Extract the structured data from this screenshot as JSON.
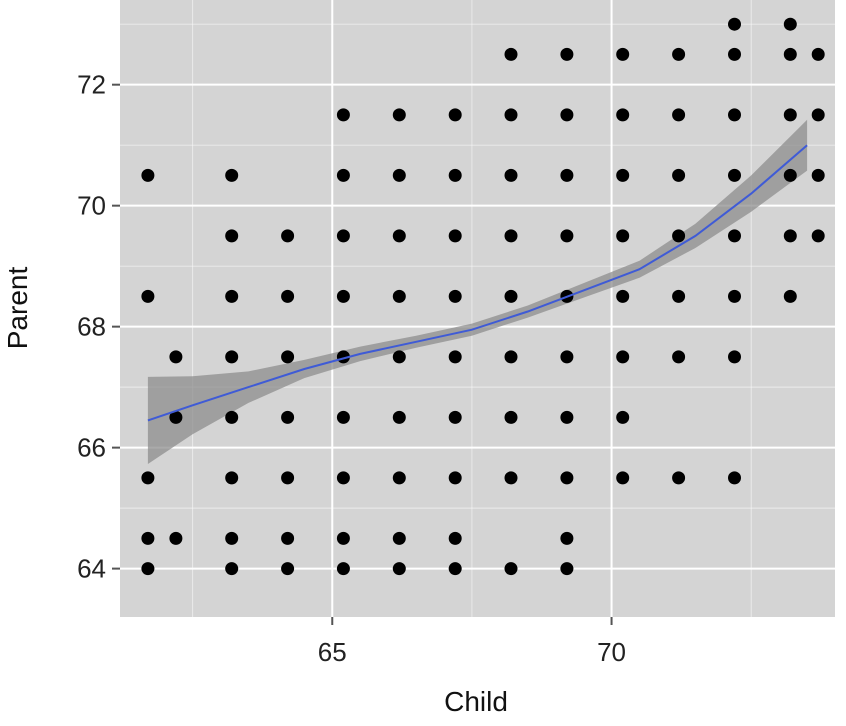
{
  "chart_data": {
    "type": "scatter",
    "xlabel": "Child",
    "ylabel": "Parent",
    "xlim": [
      61.2,
      74.0
    ],
    "ylim": [
      63.2,
      73.4
    ],
    "x_ticks": [
      65,
      70
    ],
    "y_ticks": [
      64,
      66,
      68,
      70,
      72
    ],
    "grid": true,
    "legend": "none",
    "colors": {
      "panel": "#d4d4d4",
      "grid": "#ffffff",
      "point": "#000000",
      "smooth_line": "#3f5bd6",
      "ribbon": "#8d8d8d"
    },
    "points": [
      [
        61.7,
        70.5
      ],
      [
        61.7,
        68.5
      ],
      [
        61.7,
        65.5
      ],
      [
        61.7,
        64.5
      ],
      [
        61.7,
        64.0
      ],
      [
        62.2,
        67.5
      ],
      [
        62.2,
        66.5
      ],
      [
        62.2,
        64.5
      ],
      [
        63.2,
        70.5
      ],
      [
        63.2,
        69.5
      ],
      [
        63.2,
        68.5
      ],
      [
        63.2,
        67.5
      ],
      [
        63.2,
        66.5
      ],
      [
        63.2,
        65.5
      ],
      [
        63.2,
        64.5
      ],
      [
        63.2,
        64.0
      ],
      [
        64.2,
        69.5
      ],
      [
        64.2,
        68.5
      ],
      [
        64.2,
        67.5
      ],
      [
        64.2,
        66.5
      ],
      [
        64.2,
        65.5
      ],
      [
        64.2,
        64.5
      ],
      [
        64.2,
        64.0
      ],
      [
        65.2,
        71.5
      ],
      [
        65.2,
        70.5
      ],
      [
        65.2,
        69.5
      ],
      [
        65.2,
        68.5
      ],
      [
        65.2,
        67.5
      ],
      [
        65.2,
        66.5
      ],
      [
        65.2,
        65.5
      ],
      [
        65.2,
        64.5
      ],
      [
        65.2,
        64.0
      ],
      [
        66.2,
        71.5
      ],
      [
        66.2,
        70.5
      ],
      [
        66.2,
        69.5
      ],
      [
        66.2,
        68.5
      ],
      [
        66.2,
        67.5
      ],
      [
        66.2,
        66.5
      ],
      [
        66.2,
        65.5
      ],
      [
        66.2,
        64.5
      ],
      [
        66.2,
        64.0
      ],
      [
        67.2,
        71.5
      ],
      [
        67.2,
        70.5
      ],
      [
        67.2,
        69.5
      ],
      [
        67.2,
        68.5
      ],
      [
        67.2,
        67.5
      ],
      [
        67.2,
        66.5
      ],
      [
        67.2,
        65.5
      ],
      [
        67.2,
        64.5
      ],
      [
        67.2,
        64.0
      ],
      [
        68.2,
        72.5
      ],
      [
        68.2,
        71.5
      ],
      [
        68.2,
        70.5
      ],
      [
        68.2,
        69.5
      ],
      [
        68.2,
        68.5
      ],
      [
        68.2,
        67.5
      ],
      [
        68.2,
        66.5
      ],
      [
        68.2,
        65.5
      ],
      [
        68.2,
        64.0
      ],
      [
        69.2,
        72.5
      ],
      [
        69.2,
        71.5
      ],
      [
        69.2,
        70.5
      ],
      [
        69.2,
        69.5
      ],
      [
        69.2,
        68.5
      ],
      [
        69.2,
        67.5
      ],
      [
        69.2,
        66.5
      ],
      [
        69.2,
        65.5
      ],
      [
        69.2,
        64.5
      ],
      [
        69.2,
        64.0
      ],
      [
        70.2,
        72.5
      ],
      [
        70.2,
        71.5
      ],
      [
        70.2,
        70.5
      ],
      [
        70.2,
        69.5
      ],
      [
        70.2,
        68.5
      ],
      [
        70.2,
        67.5
      ],
      [
        70.2,
        66.5
      ],
      [
        70.2,
        65.5
      ],
      [
        71.2,
        72.5
      ],
      [
        71.2,
        71.5
      ],
      [
        71.2,
        70.5
      ],
      [
        71.2,
        69.5
      ],
      [
        71.2,
        68.5
      ],
      [
        71.2,
        67.5
      ],
      [
        71.2,
        65.5
      ],
      [
        72.2,
        73.0
      ],
      [
        72.2,
        72.5
      ],
      [
        72.2,
        71.5
      ],
      [
        72.2,
        70.5
      ],
      [
        72.2,
        69.5
      ],
      [
        72.2,
        68.5
      ],
      [
        72.2,
        67.5
      ],
      [
        72.2,
        65.5
      ],
      [
        73.2,
        73.0
      ],
      [
        73.2,
        72.5
      ],
      [
        73.2,
        71.5
      ],
      [
        73.2,
        70.5
      ],
      [
        73.2,
        69.5
      ],
      [
        73.2,
        68.5
      ],
      [
        73.7,
        72.5
      ],
      [
        73.7,
        71.5
      ],
      [
        73.7,
        70.5
      ],
      [
        73.7,
        69.5
      ]
    ],
    "smooth_line": {
      "x": [
        61.7,
        62.5,
        63.5,
        64.5,
        65.5,
        66.5,
        67.5,
        68.5,
        69.5,
        70.5,
        71.5,
        72.5,
        73.5
      ],
      "y": [
        66.45,
        66.7,
        67.0,
        67.3,
        67.55,
        67.75,
        67.95,
        68.25,
        68.6,
        68.95,
        69.5,
        70.2,
        71.0
      ],
      "ribbon_halfwidth": [
        0.72,
        0.48,
        0.26,
        0.15,
        0.12,
        0.1,
        0.1,
        0.1,
        0.12,
        0.14,
        0.2,
        0.3,
        0.42
      ]
    }
  }
}
